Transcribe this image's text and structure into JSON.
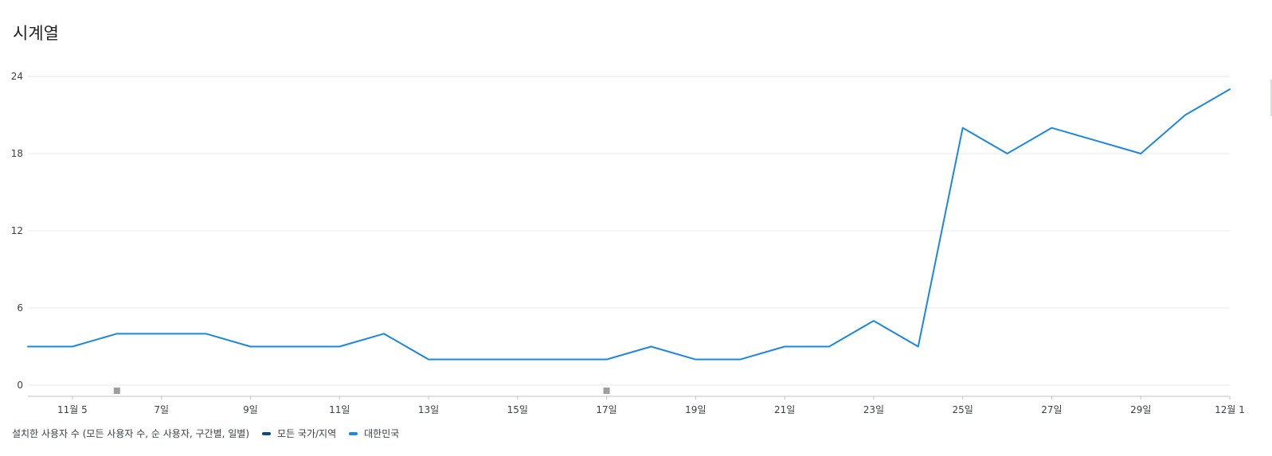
{
  "page": {
    "title": "시계열"
  },
  "legend": {
    "metric": "설치한 사용자 수 (모든 사용자 수, 순 사용자, 구간별, 일별)",
    "items": [
      {
        "label": "모든 국가/지역",
        "color": "#0b4b8c"
      },
      {
        "label": "대한민국",
        "color": "#1a87e0"
      }
    ]
  },
  "chart_data": {
    "type": "line",
    "x": [
      "11월 4",
      "11월 5",
      "11월 6",
      "11월 7",
      "11월 8",
      "11월 9",
      "11월 10",
      "11월 11",
      "11월 12",
      "11월 13",
      "11월 14",
      "11월 15",
      "11월 16",
      "11월 17",
      "11월 18",
      "11월 19",
      "11월 20",
      "11월 21",
      "11월 22",
      "11월 23",
      "11월 24",
      "11월 25",
      "11월 26",
      "11월 27",
      "11월 28",
      "11월 29",
      "11월 30",
      "12월 1"
    ],
    "x_tick_labels": [
      {
        "index": 1,
        "label": "11월 5"
      },
      {
        "index": 3,
        "label": "7일"
      },
      {
        "index": 5,
        "label": "9일"
      },
      {
        "index": 7,
        "label": "11일"
      },
      {
        "index": 9,
        "label": "13일"
      },
      {
        "index": 11,
        "label": "15일"
      },
      {
        "index": 13,
        "label": "17일"
      },
      {
        "index": 15,
        "label": "19일"
      },
      {
        "index": 17,
        "label": "21일"
      },
      {
        "index": 19,
        "label": "23일"
      },
      {
        "index": 21,
        "label": "25일"
      },
      {
        "index": 23,
        "label": "27일"
      },
      {
        "index": 25,
        "label": "29일"
      },
      {
        "index": 27,
        "label": "12월 1"
      }
    ],
    "y_ticks": [
      0,
      6,
      12,
      18,
      24
    ],
    "ylim": [
      0,
      24
    ],
    "grid": true,
    "legend_position": "bottom-left",
    "series": [
      {
        "name": "대한민국",
        "color": "#1a87e0",
        "values": [
          3,
          3,
          4,
          4,
          4,
          3,
          3,
          3,
          4,
          2,
          2,
          2,
          2,
          2,
          3,
          2,
          2,
          3,
          3,
          5,
          3,
          20,
          18,
          20,
          19,
          18,
          21,
          23
        ]
      }
    ],
    "annotation_markers": [
      {
        "x": "11월 6"
      },
      {
        "x": "11월 17"
      }
    ],
    "marker_color": "#9e9e9e"
  }
}
